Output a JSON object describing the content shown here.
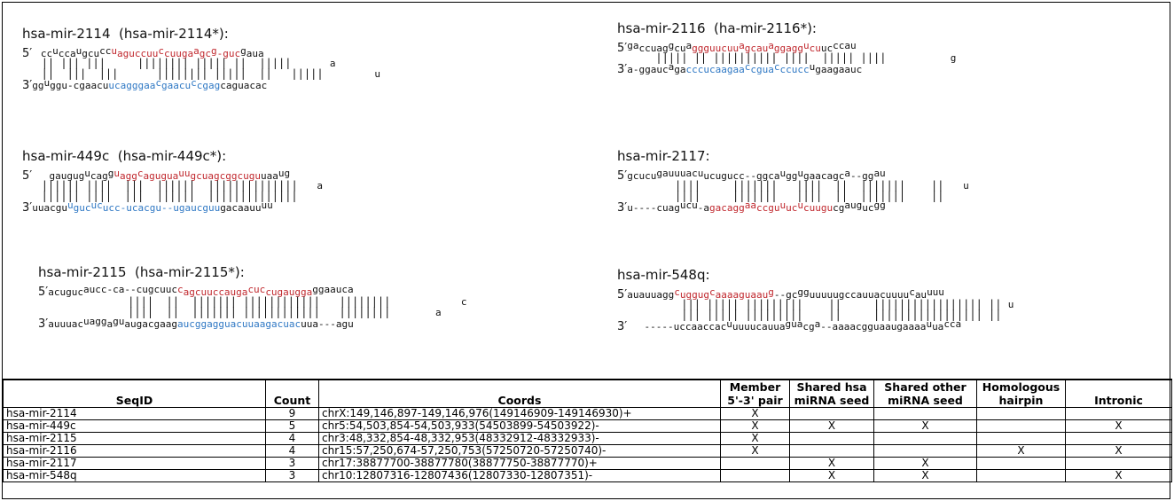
{
  "hairpins": [
    {
      "title": "hsa-mir-2114  (hsa-mir-2114*):",
      "five_prime": "5′",
      "three_prime": "3′",
      "top_loop": "ccuccaugcuccuaguccuuccuugaagcg-gucggaua",
      "pairs": "|| ||| |||     |||||||| ||||| ||  |||||",
      "bottom": "ggugggu-cgaacuucagggaacgaacuccgagcagu",
      "loop_end_top": "a",
      "loop_end_mid": "u",
      "loop_end_bot": "acac"
    },
    {
      "title": "hsa-mir-2116  (ha-mir-2116*):",
      "five_prime": "5′",
      "three_prime": "3′",
      "top_loop": "gaccuaggcuaggguucuuagcauaggaggucuucccau",
      "pairs": "||||| || |||||||||| ||||  ||||| ||||",
      "bottom": "a-ggaucagaccucaagaacguaccuccugaag",
      "loop_end_top": "g",
      "loop_end_bot": "aauc"
    },
    {
      "title": "hsa-mir-449c  (hsa-mir-449c*):",
      "five_prime": "5′",
      "three_prime": "3′",
      "top_loop": "gaugugucaggu aggcagugua uugcuagcggcuguuaaug",
      "pairs": "|||||| ||||  |||  ||||||  ||||||||||||||",
      "bottom": "uuacguugucucucc-ucacgu--ugaucguugacaauu",
      "loop_end_top": "a",
      "loop_end_bot": "uu"
    },
    {
      "title": "hsa-mir-2117:",
      "five_prime": "5′",
      "three_prime": "3′",
      "top_loop": "gcucugauuuacuucugucc--ggcaugguggaacagca--ggau",
      "pairs": "||||     |||||||   ||||  ||  |||||||    ||",
      "bottom": "u----cuagucu-agacaggaaccguucucuugucgauguc",
      "loop_end_top": "u",
      "loop_end_bot": "gg"
    },
    {
      "title": "hsa-mir-2115  (hsa-mir-2115*):",
      "five_prime": "5′",
      "three_prime": "3′",
      "top_loop": "acugucaucc-ca--cugcuuccagcuuccaugacuccugaugga ggaauca",
      "pairs": "||||  ||  ||||||| ||||||||||||   ||||||||",
      "bottom": "auuuacuagg agu au gacgaag aucggagguacuuaagacuacuua---agu",
      "loop_end_top": "c",
      "loop_end_mid": "a",
      "loop_end_bot": "u"
    },
    {
      "title": "hsa-mir-548q:",
      "five_prime": "5′",
      "three_prime": "3′",
      "top_loop": "auauuaggcugguguaaaaguaaug--gcgguuuuugccauuacuuuucauuuu",
      "pairs": "||| ||||| |||||||||    ||     ||||||||||||||||| ||",
      "bottom": "-----uccaaccacuuuuucauuaguacga--aaaacgguaaugaaaauuacca",
      "loop_end_mid": "u"
    }
  ],
  "table": {
    "headers": {
      "seqid": "SeqID",
      "count": "Count",
      "coords": "Coords",
      "member_l1": "Member",
      "member_l2": "5'-3' pair",
      "shared_hsa_l1": "Shared hsa",
      "shared_hsa_l2": "miRNA seed",
      "shared_other_l1": "Shared other",
      "shared_other_l2": "miRNA seed",
      "homologous_l1": "Homologous",
      "homologous_l2": "hairpin",
      "intronic": "Intronic"
    },
    "rows": [
      {
        "seqid": "hsa-mir-2114",
        "count": "9",
        "coords": "chrX:149,146,897-149,146,976(149146909-149146930)+",
        "member": "X",
        "shared_hsa": "",
        "shared_other": "",
        "homologous": "",
        "intronic": ""
      },
      {
        "seqid": "hsa-mir-449c",
        "count": "5",
        "coords": "chr5:54,503,854-54,503,933(54503899-54503922)-",
        "member": "X",
        "shared_hsa": "X",
        "shared_other": "X",
        "homologous": "",
        "intronic": "X"
      },
      {
        "seqid": "hsa-mir-2115",
        "count": "4",
        "coords": "chr3:48,332,854-48,332,953(48332912-48332933)-",
        "member": "X",
        "shared_hsa": "",
        "shared_other": "",
        "homologous": "",
        "intronic": ""
      },
      {
        "seqid": "hsa-mir-2116",
        "count": "4",
        "coords": "chr15:57,250,674-57,250,753(57250720-57250740)-",
        "member": "X",
        "shared_hsa": "",
        "shared_other": "",
        "homologous": "X",
        "intronic": "X"
      },
      {
        "seqid": "hsa-mir-2117",
        "count": "3",
        "coords": "chr17:38877700-38877780(38877750-38877770)+",
        "member": "",
        "shared_hsa": "X",
        "shared_other": "X",
        "homologous": "",
        "intronic": ""
      },
      {
        "seqid": "hsa-mir-548q",
        "count": "3",
        "coords": "chr10:12807316-12807436(12807330-12807351)-",
        "member": "",
        "shared_hsa": "X",
        "shared_other": "X",
        "homologous": "",
        "intronic": "X"
      }
    ]
  }
}
